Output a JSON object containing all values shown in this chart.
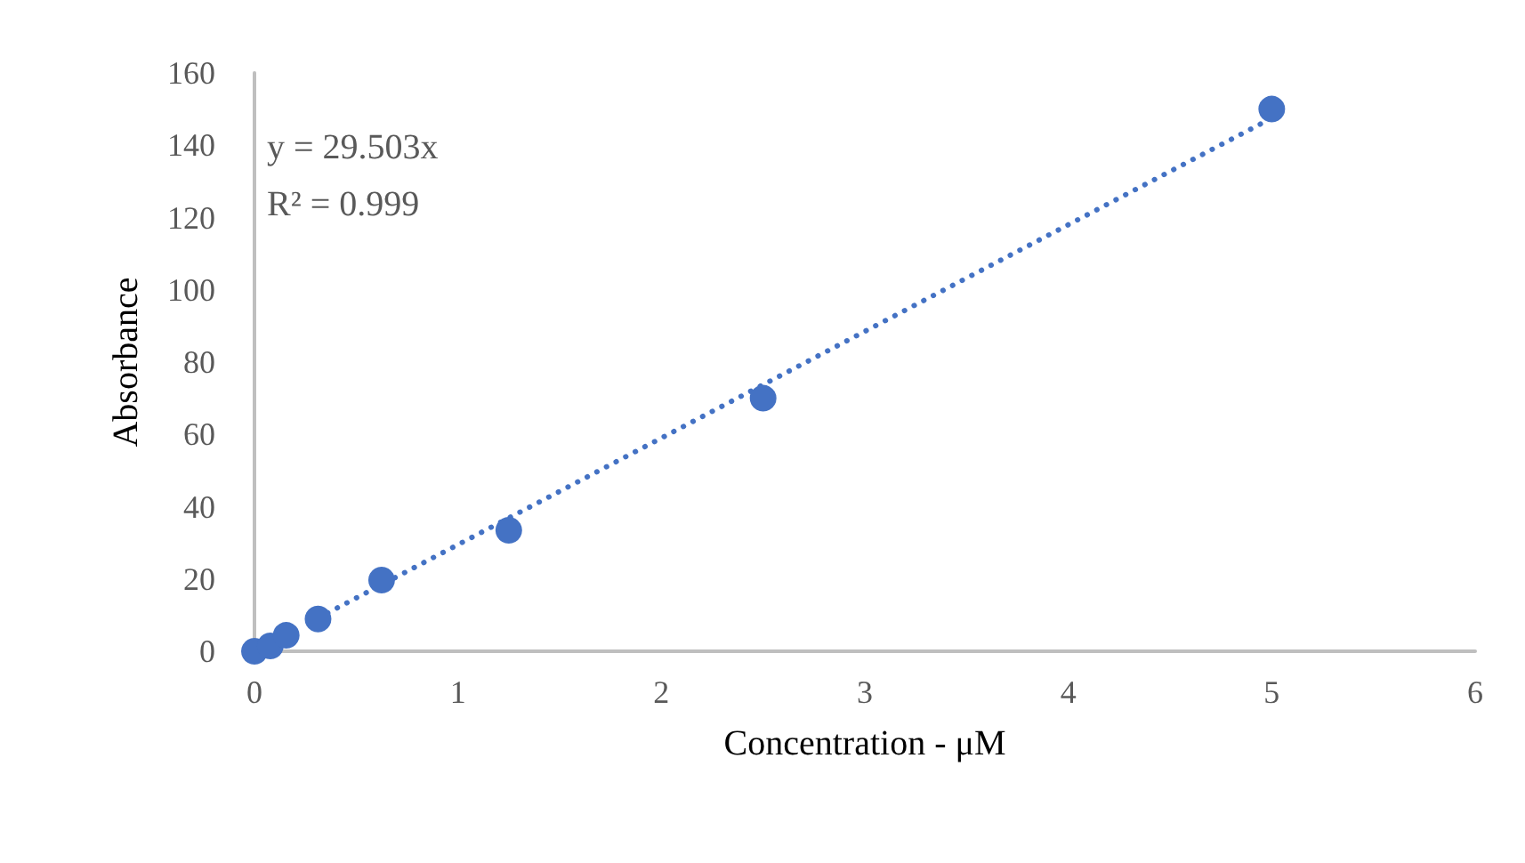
{
  "chart_data": {
    "type": "scatter",
    "xlabel": "Concentration - μM",
    "ylabel": "Absorbance",
    "xlim": [
      0,
      6
    ],
    "xticks": [
      0,
      1,
      2,
      3,
      4,
      5,
      6
    ],
    "ylim": [
      0,
      160
    ],
    "yticks": [
      0,
      20,
      40,
      60,
      80,
      100,
      120,
      140,
      160
    ],
    "grid": false,
    "marker": "circle",
    "annotations": [
      "y = 29.503x",
      "R² = 0.999"
    ],
    "series": [
      {
        "color": "#4472c4",
        "x": [
          0,
          0.078,
          0.156,
          0.3125,
          0.625,
          1.25,
          2.5,
          5
        ],
        "values": [
          0,
          1.5,
          4.4,
          8.9,
          19.7,
          33.5,
          70,
          150
        ]
      },
      {
        "type": "line",
        "color": "#4472c4",
        "line_style": "dotted",
        "marker": "none",
        "x": [
          0.3125,
          5
        ],
        "values": [
          9.2,
          147.5
        ]
      }
    ]
  }
}
